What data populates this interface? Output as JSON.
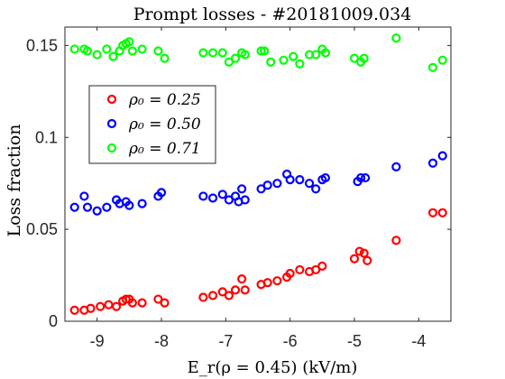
{
  "chart_data": {
    "type": "scatter",
    "title": "Prompt losses - #20181009.034",
    "xlabel": "E_r(ρ = 0.45) (kV/m)",
    "ylabel": "Loss fraction",
    "xlim": [
      -9.5,
      -3.5
    ],
    "ylim": [
      0,
      0.16
    ],
    "x_ticks": [
      -9,
      -8,
      -7,
      -6,
      -5,
      -4
    ],
    "x_tick_labels": [
      "-9",
      "-8",
      "-7",
      "-6",
      "-5",
      "-4"
    ],
    "y_ticks": [
      0,
      0.05,
      0.1,
      0.15
    ],
    "y_tick_labels": [
      "0",
      "0.05",
      "0.1",
      "0.15"
    ],
    "grid": false,
    "legend_position": "upper-left",
    "series": [
      {
        "name": "ρ₀ = 0.25",
        "color": "#ff0000",
        "points": [
          [
            -9.35,
            0.006
          ],
          [
            -9.2,
            0.006
          ],
          [
            -9.1,
            0.007
          ],
          [
            -8.95,
            0.008
          ],
          [
            -8.82,
            0.009
          ],
          [
            -8.7,
            0.008
          ],
          [
            -8.6,
            0.011
          ],
          [
            -8.55,
            0.012
          ],
          [
            -8.5,
            0.012
          ],
          [
            -8.45,
            0.01
          ],
          [
            -8.3,
            0.01
          ],
          [
            -8.05,
            0.012
          ],
          [
            -7.95,
            0.01
          ],
          [
            -7.35,
            0.013
          ],
          [
            -7.2,
            0.014
          ],
          [
            -7.05,
            0.016
          ],
          [
            -6.95,
            0.014
          ],
          [
            -6.85,
            0.017
          ],
          [
            -6.75,
            0.023
          ],
          [
            -6.7,
            0.017
          ],
          [
            -6.45,
            0.02
          ],
          [
            -6.35,
            0.021
          ],
          [
            -6.2,
            0.022
          ],
          [
            -6.05,
            0.024
          ],
          [
            -6.0,
            0.026
          ],
          [
            -5.85,
            0.028
          ],
          [
            -5.7,
            0.027
          ],
          [
            -5.6,
            0.028
          ],
          [
            -5.5,
            0.03
          ],
          [
            -5.0,
            0.034
          ],
          [
            -4.92,
            0.038
          ],
          [
            -4.85,
            0.037
          ],
          [
            -4.8,
            0.033
          ],
          [
            -4.35,
            0.044
          ],
          [
            -3.78,
            0.059
          ],
          [
            -3.63,
            0.059
          ]
        ]
      },
      {
        "name": "ρ₀ = 0.50",
        "color": "#0000ff",
        "points": [
          [
            -9.35,
            0.062
          ],
          [
            -9.2,
            0.068
          ],
          [
            -9.15,
            0.062
          ],
          [
            -9.0,
            0.06
          ],
          [
            -8.85,
            0.062
          ],
          [
            -8.7,
            0.066
          ],
          [
            -8.65,
            0.064
          ],
          [
            -8.55,
            0.065
          ],
          [
            -8.5,
            0.063
          ],
          [
            -8.3,
            0.064
          ],
          [
            -8.05,
            0.068
          ],
          [
            -8.0,
            0.07
          ],
          [
            -7.35,
            0.068
          ],
          [
            -7.2,
            0.067
          ],
          [
            -7.05,
            0.069
          ],
          [
            -6.95,
            0.066
          ],
          [
            -6.85,
            0.068
          ],
          [
            -6.8,
            0.065
          ],
          [
            -6.75,
            0.072
          ],
          [
            -6.7,
            0.066
          ],
          [
            -6.45,
            0.072
          ],
          [
            -6.35,
            0.074
          ],
          [
            -6.2,
            0.075
          ],
          [
            -6.05,
            0.08
          ],
          [
            -6.0,
            0.077
          ],
          [
            -5.85,
            0.077
          ],
          [
            -5.7,
            0.075
          ],
          [
            -5.6,
            0.072
          ],
          [
            -5.5,
            0.077
          ],
          [
            -5.45,
            0.078
          ],
          [
            -4.95,
            0.076
          ],
          [
            -4.9,
            0.078
          ],
          [
            -4.83,
            0.078
          ],
          [
            -4.35,
            0.084
          ],
          [
            -3.78,
            0.086
          ],
          [
            -3.63,
            0.09
          ]
        ]
      },
      {
        "name": "ρ₀ = 0.71",
        "color": "#00ff00",
        "points": [
          [
            -9.35,
            0.148
          ],
          [
            -9.2,
            0.148
          ],
          [
            -9.15,
            0.147
          ],
          [
            -9.0,
            0.145
          ],
          [
            -8.85,
            0.148
          ],
          [
            -8.75,
            0.144
          ],
          [
            -8.65,
            0.147
          ],
          [
            -8.6,
            0.15
          ],
          [
            -8.55,
            0.151
          ],
          [
            -8.5,
            0.152
          ],
          [
            -8.45,
            0.147
          ],
          [
            -8.3,
            0.148
          ],
          [
            -8.05,
            0.147
          ],
          [
            -7.95,
            0.143
          ],
          [
            -7.35,
            0.146
          ],
          [
            -7.2,
            0.146
          ],
          [
            -7.05,
            0.146
          ],
          [
            -6.95,
            0.141
          ],
          [
            -6.85,
            0.143
          ],
          [
            -6.75,
            0.146
          ],
          [
            -6.7,
            0.145
          ],
          [
            -6.45,
            0.147
          ],
          [
            -6.4,
            0.147
          ],
          [
            -6.3,
            0.141
          ],
          [
            -6.1,
            0.142
          ],
          [
            -5.95,
            0.144
          ],
          [
            -5.85,
            0.14
          ],
          [
            -5.7,
            0.145
          ],
          [
            -5.6,
            0.145
          ],
          [
            -5.5,
            0.148
          ],
          [
            -5.45,
            0.146
          ],
          [
            -5.0,
            0.143
          ],
          [
            -4.9,
            0.141
          ],
          [
            -4.85,
            0.143
          ],
          [
            -4.35,
            0.154
          ],
          [
            -3.78,
            0.138
          ],
          [
            -3.63,
            0.142
          ]
        ]
      }
    ]
  }
}
